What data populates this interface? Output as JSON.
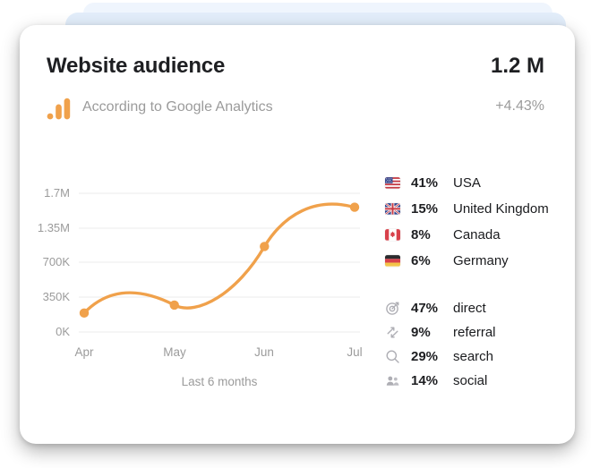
{
  "colors": {
    "accent": "#F0A14B",
    "title-text": "#1E1F22",
    "muted-text": "#9B9B9B",
    "dark-text": "#1A1B1E",
    "gridline": "#EFEFEF",
    "layer1": "#EFF5FD",
    "layer2": "#E2EDFA",
    "card-bg": "#FFFFFF",
    "icon-gray": "#AEAEB4"
  },
  "header": {
    "title": "Website audience",
    "total": "1.2 M",
    "source_label": "According to Google Analytics",
    "change": "+4.43%"
  },
  "chart_data": {
    "type": "line",
    "x": [
      "Apr",
      "May",
      "Jun",
      "Jul"
    ],
    "values": [
      190000,
      270000,
      1000000,
      1560000
    ],
    "yticks": [
      "1.7M",
      "1.35M",
      "700K",
      "350K",
      "0K"
    ],
    "ytick_values": [
      1700000,
      1350000,
      700000,
      350000,
      0
    ],
    "caption": "Last 6 months",
    "line_color": "#F0A14B",
    "grid": true,
    "legend": false
  },
  "countries": [
    {
      "flag": "usa-flag",
      "percent": "41%",
      "name": "USA"
    },
    {
      "flag": "uk-flag",
      "percent": "15%",
      "name": "United Kingdom"
    },
    {
      "flag": "canada-flag",
      "percent": "8%",
      "name": "Canada"
    },
    {
      "flag": "germany-flag",
      "percent": "6%",
      "name": "Germany"
    }
  ],
  "sources": [
    {
      "icon": "target-icon",
      "percent": "47%",
      "label": "direct"
    },
    {
      "icon": "referral-arrows-icon",
      "percent": "9%",
      "label": "referral"
    },
    {
      "icon": "search-icon",
      "percent": "29%",
      "label": "search"
    },
    {
      "icon": "people-icon",
      "percent": "14%",
      "label": "social"
    }
  ]
}
